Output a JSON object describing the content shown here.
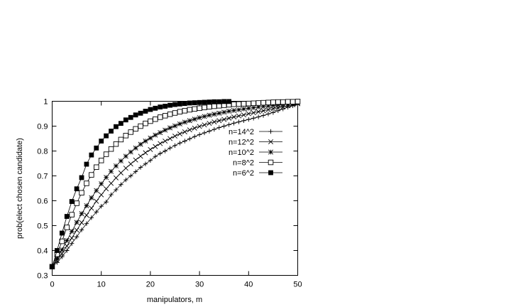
{
  "chart_data": {
    "type": "line",
    "title": "",
    "xlabel": "manipulators, m",
    "ylabel": "prob(elect chosen candidate)",
    "xlim": [
      0,
      50
    ],
    "ylim": [
      0.3,
      1
    ],
    "xticks": [
      0,
      10,
      20,
      30,
      40,
      50
    ],
    "yticks": [
      0.3,
      0.4,
      0.5,
      0.6,
      0.7,
      0.8,
      0.9,
      1
    ],
    "xtick_labels": [
      "0",
      "10",
      "20",
      "30",
      "40",
      "50"
    ],
    "ytick_labels": [
      "0.3",
      "0.4",
      "0.5",
      "0.6",
      "0.7",
      "0.8",
      "0.9",
      "1"
    ],
    "grid": false,
    "legend_position": "right",
    "series": [
      {
        "name": "n=14^2",
        "marker": "plus",
        "x": [
          0,
          1,
          2,
          3,
          4,
          5,
          6,
          7,
          8,
          9,
          10,
          11,
          12,
          13,
          14,
          15,
          16,
          17,
          18,
          19,
          20,
          21,
          22,
          23,
          24,
          25,
          26,
          27,
          28,
          29,
          30,
          31,
          32,
          33,
          34,
          35,
          36,
          37,
          38,
          39,
          40,
          41,
          42,
          43,
          44,
          45,
          46,
          47,
          48,
          49,
          50
        ],
        "y": [
          0.335,
          0.352,
          0.375,
          0.4,
          0.428,
          0.455,
          0.483,
          0.508,
          0.532,
          0.555,
          0.578,
          0.595,
          0.624,
          0.644,
          0.665,
          0.684,
          0.7,
          0.717,
          0.734,
          0.748,
          0.762,
          0.778,
          0.79,
          0.8,
          0.812,
          0.822,
          0.832,
          0.84,
          0.849,
          0.858,
          0.866,
          0.873,
          0.88,
          0.887,
          0.894,
          0.9,
          0.906,
          0.912,
          0.917,
          0.922,
          0.927,
          0.932,
          0.937,
          0.943,
          0.949,
          0.955,
          0.962,
          0.969,
          0.976,
          0.982,
          0.99
        ]
      },
      {
        "name": "n=12^2",
        "marker": "x",
        "x": [
          0,
          1,
          2,
          3,
          4,
          5,
          6,
          7,
          8,
          9,
          10,
          11,
          12,
          13,
          14,
          15,
          16,
          17,
          18,
          19,
          20,
          21,
          22,
          23,
          24,
          25,
          26,
          27,
          28,
          29,
          30,
          31,
          32,
          33,
          34,
          35,
          36,
          37,
          38,
          39,
          40,
          41,
          42,
          43,
          44,
          45,
          46,
          47,
          48,
          49,
          50
        ],
        "y": [
          0.335,
          0.36,
          0.388,
          0.418,
          0.45,
          0.482,
          0.512,
          0.542,
          0.57,
          0.598,
          0.624,
          0.648,
          0.67,
          0.692,
          0.712,
          0.731,
          0.748,
          0.764,
          0.779,
          0.793,
          0.806,
          0.818,
          0.83,
          0.84,
          0.85,
          0.86,
          0.869,
          0.877,
          0.885,
          0.892,
          0.899,
          0.905,
          0.911,
          0.917,
          0.922,
          0.927,
          0.932,
          0.937,
          0.941,
          0.945,
          0.95,
          0.954,
          0.958,
          0.962,
          0.966,
          0.97,
          0.974,
          0.978,
          0.982,
          0.986,
          0.99
        ]
      },
      {
        "name": "n=10^2",
        "marker": "star",
        "x": [
          0,
          1,
          2,
          3,
          4,
          5,
          6,
          7,
          8,
          9,
          10,
          11,
          12,
          13,
          14,
          15,
          16,
          17,
          18,
          19,
          20,
          21,
          22,
          23,
          24,
          25,
          26,
          27,
          28,
          29,
          30,
          31,
          32,
          33,
          34,
          35,
          36,
          37,
          38,
          39,
          40,
          41,
          42,
          43,
          44,
          45,
          46,
          47,
          48,
          49,
          50
        ],
        "y": [
          0.335,
          0.368,
          0.403,
          0.44,
          0.477,
          0.513,
          0.548,
          0.58,
          0.612,
          0.641,
          0.668,
          0.694,
          0.718,
          0.74,
          0.76,
          0.779,
          0.796,
          0.812,
          0.827,
          0.84,
          0.852,
          0.864,
          0.874,
          0.884,
          0.893,
          0.901,
          0.909,
          0.916,
          0.922,
          0.928,
          0.934,
          0.939,
          0.944,
          0.948,
          0.952,
          0.956,
          0.96,
          0.963,
          0.966,
          0.969,
          0.972,
          0.974,
          0.977,
          0.979,
          0.981,
          0.983,
          0.985,
          0.987,
          0.989,
          0.991,
          0.993
        ]
      },
      {
        "name": "n=8^2",
        "marker": "square-open",
        "x": [
          0,
          1,
          2,
          3,
          4,
          5,
          6,
          7,
          8,
          9,
          10,
          11,
          12,
          13,
          14,
          15,
          16,
          17,
          18,
          19,
          20,
          21,
          22,
          23,
          24,
          25,
          26,
          27,
          28,
          29,
          30,
          31,
          32,
          33,
          34,
          35,
          36,
          37,
          38,
          39,
          40,
          41,
          42,
          43,
          44,
          45,
          46,
          47,
          48,
          49,
          50
        ],
        "y": [
          0.335,
          0.385,
          0.437,
          0.493,
          0.544,
          0.59,
          0.632,
          0.67,
          0.704,
          0.735,
          0.762,
          0.787,
          0.808,
          0.828,
          0.846,
          0.862,
          0.876,
          0.889,
          0.9,
          0.911,
          0.92,
          0.928,
          0.936,
          0.942,
          0.948,
          0.953,
          0.958,
          0.962,
          0.966,
          0.969,
          0.972,
          0.975,
          0.978,
          0.98,
          0.982,
          0.984,
          0.986,
          0.988,
          0.989,
          0.99,
          0.991,
          0.992,
          0.993,
          0.994,
          0.995,
          0.996,
          0.997,
          0.997,
          0.998,
          0.998,
          0.999
        ]
      },
      {
        "name": "n=6^2",
        "marker": "square-filled",
        "x": [
          0,
          1,
          2,
          3,
          4,
          5,
          6,
          7,
          8,
          9,
          10,
          11,
          12,
          13,
          14,
          15,
          16,
          17,
          18,
          19,
          20,
          21,
          22,
          23,
          24,
          25,
          26,
          27,
          28,
          29,
          30,
          31,
          32,
          33,
          34,
          35,
          36
        ],
        "y": [
          0.335,
          0.4,
          0.47,
          0.537,
          0.597,
          0.648,
          0.693,
          0.747,
          0.784,
          0.812,
          0.84,
          0.861,
          0.88,
          0.898,
          0.911,
          0.925,
          0.935,
          0.945,
          0.952,
          0.96,
          0.967,
          0.972,
          0.977,
          0.98,
          0.984,
          0.987,
          0.989,
          0.991,
          0.993,
          0.994,
          0.995,
          0.996,
          0.997,
          0.998,
          0.998,
          0.999,
          0.999
        ]
      }
    ]
  }
}
